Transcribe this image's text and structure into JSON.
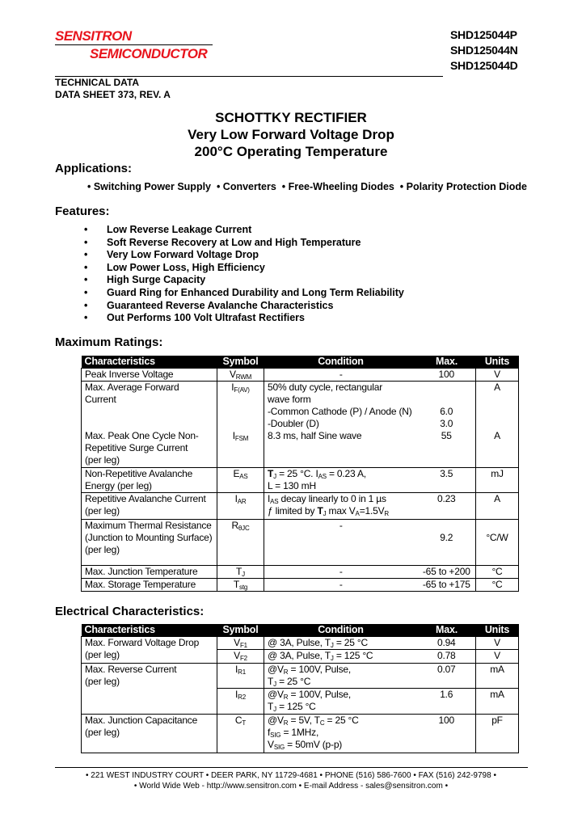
{
  "header": {
    "logo_line1": "SENSITRON",
    "logo_line2": "SEMICONDUCTOR",
    "part_numbers": [
      "SHD125044P",
      "SHD125044N",
      "SHD125044D"
    ],
    "technical_data": "TECHNICAL DATA",
    "data_sheet": "DATA SHEET 373, REV. A",
    "brand_color": "#e8141c"
  },
  "title": {
    "line1": "SCHOTTKY RECTIFIER",
    "line2": "Very Low Forward Voltage Drop",
    "line3": "200°C Operating Temperature"
  },
  "applications": {
    "heading": "Applications:",
    "text": "• Switching Power Supply  • Converters  • Free-Wheeling Diodes  • Polarity Protection Diode"
  },
  "features": {
    "heading": "Features:",
    "items": [
      "Low Reverse Leakage Current",
      "Soft Reverse Recovery at Low and High Temperature",
      "Very Low Forward Voltage Drop",
      "Low Power Loss, High Efficiency",
      "High Surge Capacity",
      "Guard Ring for Enhanced Durability and Long Term Reliability",
      "Guaranteed Reverse Avalanche Characteristics",
      "Out Performs 100 Volt Ultrafast Rectifiers"
    ]
  },
  "max_ratings": {
    "heading": "Maximum Ratings:",
    "columns": [
      "Characteristics",
      "Symbol",
      "Condition",
      "Max.",
      "Units"
    ],
    "rows": [
      {
        "char": [
          "Peak Inverse Voltage"
        ],
        "sym": [
          [
            "V",
            {
              "sub": "RWM"
            }
          ]
        ],
        "cond": [
          "-"
        ],
        "cond_center": true,
        "max": [
          "100"
        ],
        "unit": [
          "V"
        ],
        "h": 16
      },
      {
        "char": [
          "Max. Average Forward",
          "Current"
        ],
        "sym": [
          [
            "I",
            {
              "sub": "F(AV)"
            }
          ]
        ],
        "cond": [
          "50% duty cycle, rectangular",
          "wave form",
          "-Common Cathode (P) / Anode (N)",
          "-Doubler (D)"
        ],
        "max": [
          "",
          "",
          "6.0",
          "3.0"
        ],
        "unit": [
          "A"
        ],
        "h": 59,
        "no_bottom": true
      },
      {
        "char": [
          "Max. Peak One Cycle Non-",
          "Repetitive Surge Current",
          "(per leg)"
        ],
        "sym": [
          [
            "I",
            {
              "sub": "FSM"
            }
          ]
        ],
        "cond": [
          "8.3 ms, half Sine wave"
        ],
        "max": [
          "55"
        ],
        "unit": [
          "A"
        ],
        "h": 46
      },
      {
        "char": [
          "Non-Repetitive Avalanche",
          "Energy (per leg)"
        ],
        "sym": [
          [
            "E",
            {
              "sub": "AS"
            }
          ]
        ],
        "cond": [
          [
            {
              "b": "T"
            },
            {
              "sub": "J"
            },
            " = 25 °C. I",
            {
              "sub": "AS"
            },
            " = 0.23 A,"
          ],
          "L = 130 mH"
        ],
        "max": [
          "3.5"
        ],
        "unit": [
          "mJ"
        ],
        "h": 31
      },
      {
        "char": [
          "Repetitive Avalanche Current",
          "(per leg)"
        ],
        "sym": [
          [
            "I",
            {
              "sub": "AR"
            }
          ]
        ],
        "cond": [
          [
            "I",
            {
              "sub": "AS"
            },
            " decay linearly to 0 in 1 µs"
          ],
          [
            "ƒ limited by ",
            {
              "b": "T"
            },
            {
              "sub": "J"
            },
            " max V",
            {
              "sub": "A"
            },
            "=1.5V",
            {
              "sub": "R"
            }
          ]
        ],
        "max": [
          "0.23"
        ],
        "unit": [
          "A"
        ],
        "h": 33
      },
      {
        "char": [
          "Maximum Thermal Resistance",
          "(Junction to Mounting Surface)",
          "(per leg)"
        ],
        "sym": [
          [
            "R",
            {
              "sub": "θJC"
            }
          ]
        ],
        "cond": [
          "-"
        ],
        "cond_center": true,
        "max": [
          "",
          "9.2"
        ],
        "unit": [
          "",
          "°C/W"
        ],
        "h": 57
      },
      {
        "char": [
          "Max. Junction Temperature"
        ],
        "sym": [
          [
            "T",
            {
              "sub": "J"
            }
          ]
        ],
        "cond": [
          "-"
        ],
        "cond_center": true,
        "max": [
          "-65 to +200"
        ],
        "unit": [
          "°C"
        ],
        "h": 16
      },
      {
        "char": [
          "Max. Storage Temperature"
        ],
        "sym": [
          [
            "T",
            {
              "sub": "stg"
            }
          ]
        ],
        "cond": [
          "-"
        ],
        "cond_center": true,
        "max": [
          "-65 to +175"
        ],
        "unit": [
          "°C"
        ],
        "h": 16
      }
    ]
  },
  "electrical": {
    "heading": "Electrical Characteristics:",
    "columns": [
      "Characteristics",
      "Symbol",
      "Condition",
      "Max.",
      "Units"
    ],
    "rows": [
      {
        "char": [
          "Max. Forward Voltage Drop",
          "(per leg)"
        ],
        "rowspan": 2,
        "sym": [
          [
            "V",
            {
              "sub": "F1"
            }
          ]
        ],
        "cond": [
          [
            "@ 3A, Pulse, T",
            {
              "sub": "J"
            },
            " = 25 °C"
          ]
        ],
        "max": [
          "0.94"
        ],
        "unit": [
          "V"
        ],
        "h": 16
      },
      {
        "sym": [
          [
            "V",
            {
              "sub": "F2"
            }
          ]
        ],
        "cond": [
          [
            "@ 3A, Pulse, T",
            {
              "sub": "J"
            },
            " = 125 °C"
          ]
        ],
        "max": [
          "0.78"
        ],
        "unit": [
          "V"
        ],
        "h": 17
      },
      {
        "char": [
          "Max. Reverse Current",
          "(per leg)"
        ],
        "rowspan": 2,
        "sym": [
          [
            "I",
            {
              "sub": "R1"
            }
          ]
        ],
        "cond": [
          [
            "@V",
            {
              "sub": "R"
            },
            " = 100V, Pulse,"
          ],
          [
            "T",
            {
              "sub": "J"
            },
            " = 25 °C"
          ]
        ],
        "max": [
          "0.07"
        ],
        "unit": [
          "mA"
        ],
        "h": 31
      },
      {
        "sym": [
          [
            "I",
            {
              "sub": "R2"
            }
          ]
        ],
        "cond": [
          [
            "@V",
            {
              "sub": "R"
            },
            " = 100V, Pulse,"
          ],
          [
            "T",
            {
              "sub": "J"
            },
            " = 125 °C"
          ]
        ],
        "max": [
          "1.6"
        ],
        "unit": [
          "mA"
        ],
        "h": 32
      },
      {
        "char": [
          "Max. Junction Capacitance",
          "(per leg)"
        ],
        "sym": [
          [
            "C",
            {
              "sub": "T"
            }
          ]
        ],
        "cond": [
          [
            "@V",
            {
              "sub": "R"
            },
            " = 5V, T",
            {
              "sub": "C"
            },
            " = 25 °C"
          ],
          [
            "f",
            {
              "sub": "SIG"
            },
            " = 1MHz,"
          ],
          [
            "V",
            {
              "sub": "SIG"
            },
            " = 50mV (p-p)"
          ]
        ],
        "max": [
          "100"
        ],
        "unit": [
          "pF"
        ],
        "h": 48
      }
    ]
  },
  "footer": {
    "line1": "• 221 WEST INDUSTRY COURT • DEER PARK, NY 11729-4681 • PHONE (516) 586-7600 • FAX (516) 242-9798 •",
    "line2": "• World Wide Web - http://www.sensitron.com • E-mail Address - sales@sensitron.com •"
  }
}
